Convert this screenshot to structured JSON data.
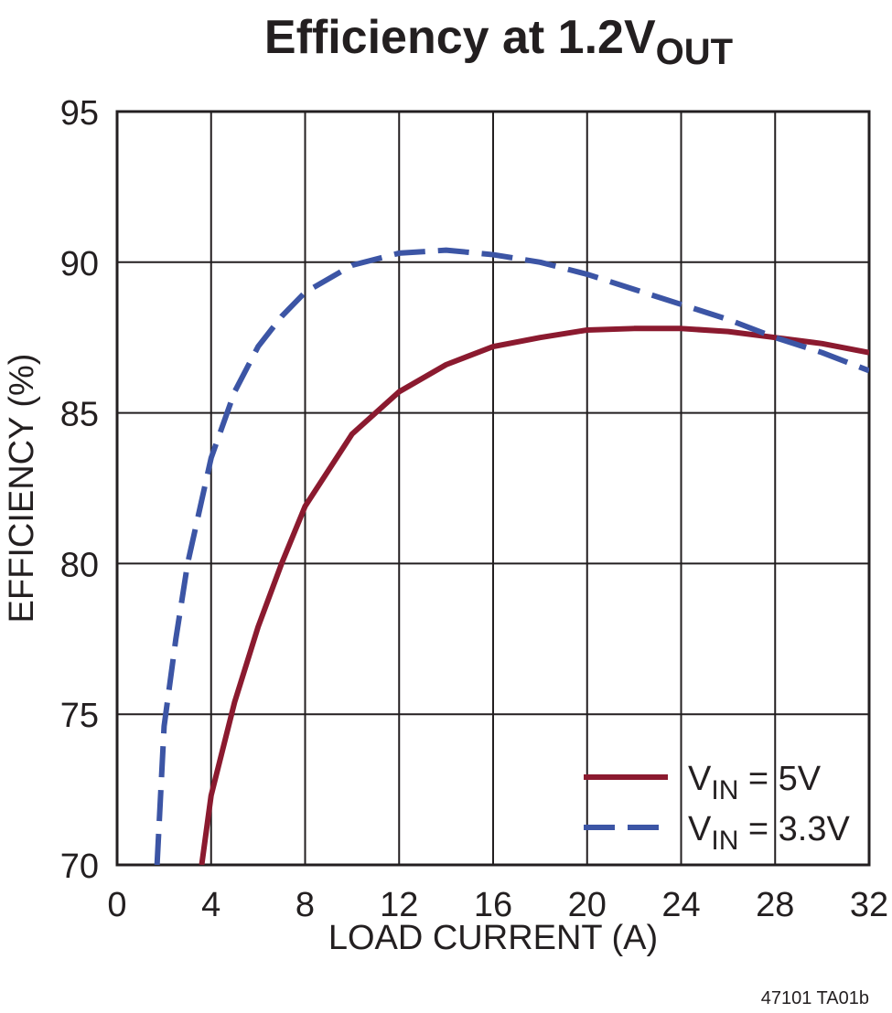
{
  "chart_data": {
    "type": "line",
    "title": {
      "text": "Efficiency at 1.2V",
      "subscript": "OUT"
    },
    "x_label": "LOAD CURRENT (A)",
    "y_label": "EFFICIENCY (%)",
    "footnote": "47101 TA01b",
    "xlim": [
      0,
      32
    ],
    "xticks": [
      0,
      4,
      8,
      12,
      16,
      20,
      24,
      28,
      32
    ],
    "ylim": [
      70,
      95
    ],
    "yticks": [
      70,
      75,
      80,
      85,
      90,
      95
    ],
    "grid": true,
    "legend": "lower right",
    "series": [
      {
        "name": {
          "text": "V",
          "subscript": "IN",
          "suffix": " = 5V"
        },
        "color": "#8b1a2f",
        "line_style": "solid",
        "x": [
          3.6,
          4,
          5,
          6,
          7,
          8,
          10,
          12,
          14,
          16,
          18,
          20,
          22,
          24,
          26,
          28,
          30,
          32
        ],
        "values": [
          70,
          72.3,
          75.4,
          77.9,
          80,
          81.9,
          84.3,
          85.7,
          86.6,
          87.2,
          87.5,
          87.75,
          87.8,
          87.8,
          87.7,
          87.5,
          87.3,
          87.0
        ]
      },
      {
        "name": {
          "text": "V",
          "subscript": "IN",
          "suffix": " = 3.3V"
        },
        "color": "#3c55a5",
        "line_style": "dashed",
        "x": [
          1.7,
          2,
          2.5,
          3,
          4,
          5,
          6,
          7,
          8,
          10,
          12,
          14,
          16,
          18,
          20,
          22,
          24,
          26,
          28,
          30,
          32
        ],
        "values": [
          70,
          74.6,
          77.5,
          80,
          83.5,
          85.7,
          87.2,
          88.2,
          89.0,
          89.9,
          90.3,
          90.4,
          90.25,
          90.0,
          89.6,
          89.1,
          88.6,
          88.1,
          87.5,
          87.0,
          86.4
        ]
      }
    ]
  }
}
